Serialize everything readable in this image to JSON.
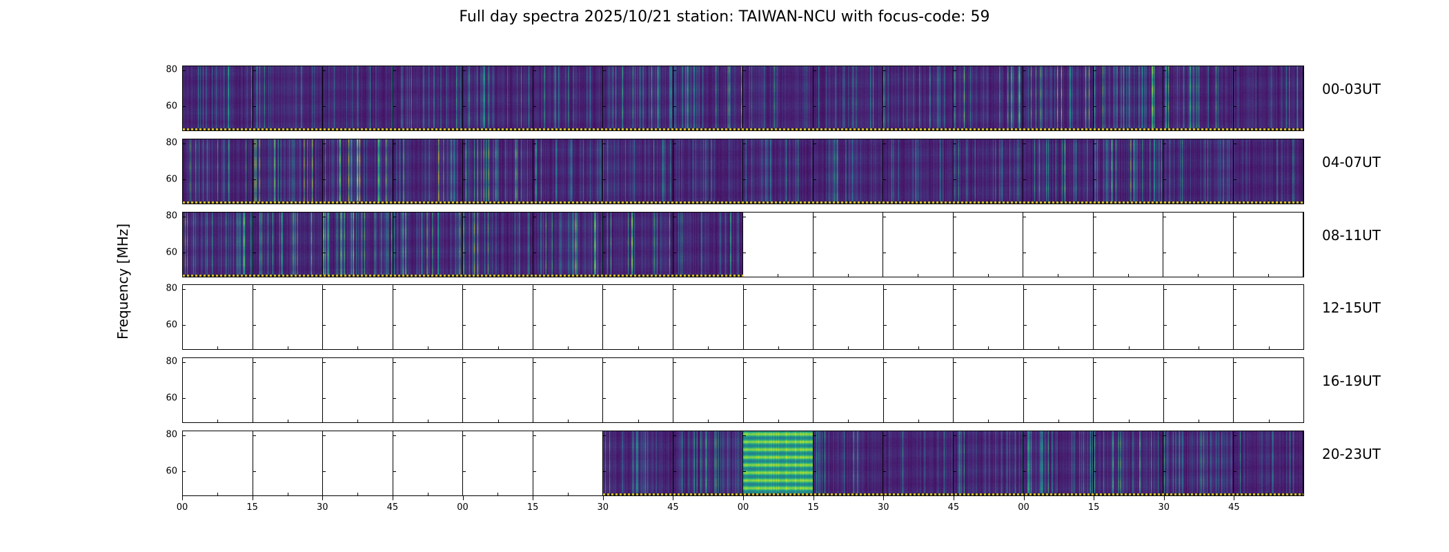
{
  "title": "Full day spectra 2025/10/21 station: TAIWAN-NCU with focus-code: 59",
  "ylabel": "Frequency [MHz]",
  "chart_data": {
    "type": "heatmap",
    "subtype": "spectrogram-grid",
    "colormap": "viridis",
    "station": "TAIWAN-NCU",
    "date": "2025/10/21",
    "focus_code": "59",
    "segments_per_row": 16,
    "segment_minutes": 15,
    "y_ticks": [
      "80",
      "60"
    ],
    "y_range_mhz": [
      50,
      85
    ],
    "x_tick_labels": [
      "00",
      "15",
      "30",
      "45",
      "00",
      "15",
      "30",
      "45",
      "00",
      "15",
      "30",
      "45",
      "00",
      "15",
      "30",
      "45"
    ],
    "rows": [
      {
        "label": "00-03UT",
        "coverage": [
          0,
          16
        ],
        "segment_intensity": [
          0.35,
          0.3,
          0.28,
          0.3,
          0.33,
          0.3,
          0.45,
          0.5,
          0.3,
          0.38,
          0.42,
          0.6,
          0.62,
          0.55,
          0.5,
          0.33
        ]
      },
      {
        "label": "04-07UT",
        "coverage": [
          0,
          16
        ],
        "segment_intensity": [
          0.5,
          0.62,
          0.7,
          0.66,
          0.6,
          0.42,
          0.32,
          0.3,
          0.33,
          0.3,
          0.33,
          0.4,
          0.5,
          0.62,
          0.35,
          0.3
        ]
      },
      {
        "label": "08-11UT",
        "coverage": [
          0,
          8
        ],
        "segment_intensity": [
          0.45,
          0.5,
          0.62,
          0.58,
          0.55,
          0.6,
          0.5,
          0.45,
          null,
          null,
          null,
          null,
          null,
          null,
          null,
          null
        ]
      },
      {
        "label": "12-15UT",
        "coverage": null,
        "segment_intensity": [
          null,
          null,
          null,
          null,
          null,
          null,
          null,
          null,
          null,
          null,
          null,
          null,
          null,
          null,
          null,
          null
        ]
      },
      {
        "label": "16-19UT",
        "coverage": null,
        "segment_intensity": [
          null,
          null,
          null,
          null,
          null,
          null,
          null,
          null,
          null,
          null,
          null,
          null,
          null,
          null,
          null,
          null
        ]
      },
      {
        "label": "20-23UT",
        "coverage": [
          6,
          16
        ],
        "segment_intensity": [
          null,
          null,
          null,
          null,
          null,
          null,
          0.4,
          0.45,
          0.95,
          0.33,
          0.3,
          0.3,
          0.45,
          0.5,
          0.42,
          0.4
        ]
      }
    ],
    "colors": {
      "spectrum_low": "#440154",
      "spectrum_mid": "#21918c",
      "spectrum_high": "#fde725",
      "dotted_line": "#d8bb2a",
      "empty_panel": "#ffffff",
      "border": "#000000"
    },
    "legend_position": "none",
    "grid": false
  }
}
